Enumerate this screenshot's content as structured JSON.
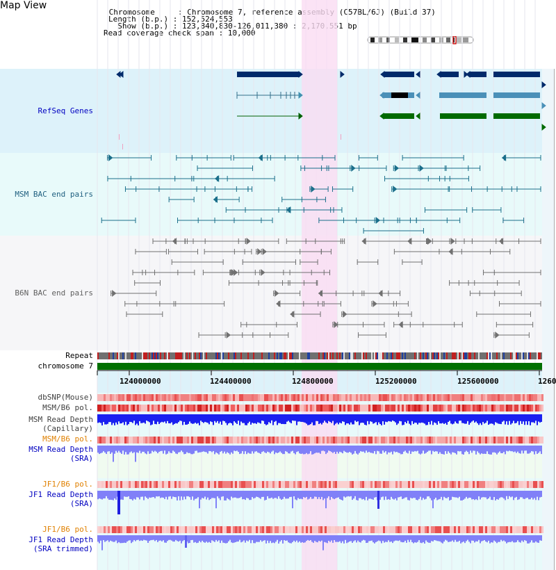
{
  "title": "Map View",
  "info": {
    "chromosome_line": " Chromosome     : Chromosome 7, reference assembly (C57BL/6J) (Build 37)",
    "length_line": "Length (b.p.) : 152,524,553",
    "show_line": "  Show (b.p.) : 123,840,830-126,011,380 : 2,170,551 bp",
    "coverage_line": "Read coverage check span : 10,000"
  },
  "tracks": {
    "refseq": "RefSeq Genes",
    "msm_bac": "MSM BAC end pairs",
    "b6n_bac": "B6N BAC end pairs",
    "repeat": "Repeat",
    "chromosome": "chromosome 7",
    "dbsnp": "dbSNP(Mouse)",
    "msm_b6_pol": "MSM/B6 pol.",
    "msm_depth_cap_1": "MSM Read Depth",
    "msm_depth_cap_2": "(Capillary)",
    "msm_b6_pol2": "MSM/B6 pol.",
    "msm_depth_sra_1": "MSM Read Depth",
    "msm_depth_sra_2": "(SRA)",
    "jf1_b6_pol": "JF1/B6 pol.",
    "jf1_depth_1": "JF1 Read Depth",
    "jf1_depth_2": "(SRA)",
    "jf1_b6_pol2": "JF1/B6 pol.",
    "jf1_trim_1": "JF1 Read Depth",
    "jf1_trim_2": "(SRA trimmed)"
  },
  "axis": {
    "ticks": [
      "124000000",
      "124400000",
      "124800000",
      "125200000",
      "125600000",
      "1260"
    ]
  },
  "colors": {
    "refseq_bg": "#ddf2fa",
    "msm_bg": "#e8fafa",
    "b6n_bg": "#f6f6f8",
    "highlight": "#fadcf2",
    "chrom_bar": "#007000",
    "depth_blue": "#1a20f0",
    "depth_light": "#8080f8",
    "label_blue": "#0000c0",
    "label_teal": "#206080",
    "label_orange": "#e08000"
  }
}
